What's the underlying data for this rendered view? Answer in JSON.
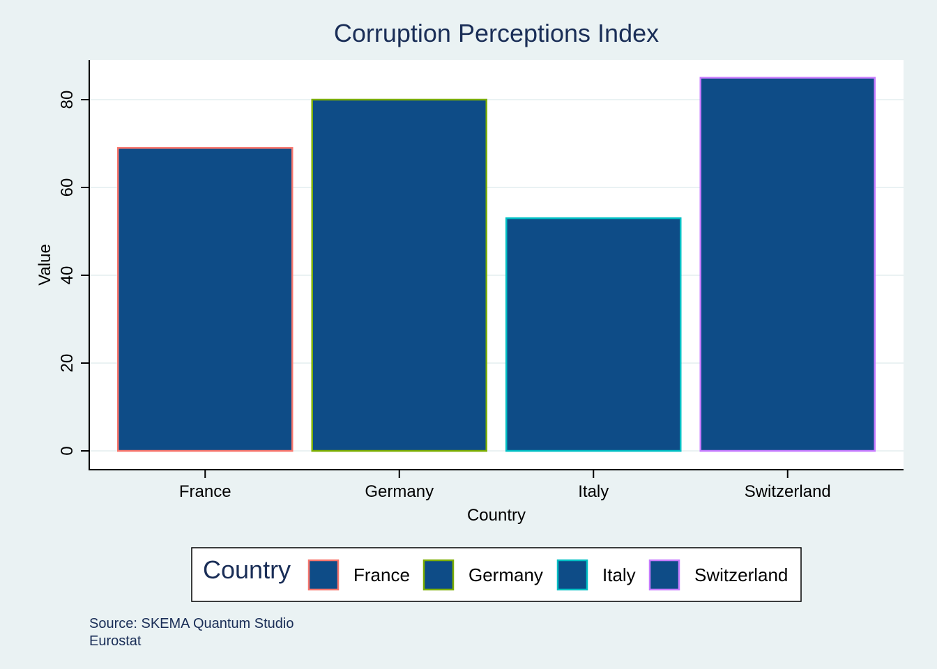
{
  "chart_data": {
    "type": "bar",
    "title": "Corruption Perceptions Index",
    "xlabel": "Country",
    "ylabel": "Value",
    "categories": [
      "France",
      "Germany",
      "Italy",
      "Switzerland"
    ],
    "values": [
      69,
      80,
      53,
      85
    ],
    "ylim": [
      0,
      89
    ],
    "yticks": [
      0,
      20,
      40,
      60,
      80
    ],
    "grid": true,
    "bar_fill": "#0e4c87",
    "outline_colors": [
      "#f8766d",
      "#7cae00",
      "#00bfc4",
      "#c77cff"
    ],
    "legend": {
      "title": "Country",
      "position": "bottom",
      "entries": [
        "France",
        "Germany",
        "Italy",
        "Switzerland"
      ]
    },
    "caption": [
      "Source: SKEMA Quantum Studio",
      "Eurostat"
    ]
  },
  "colors": {
    "background": "#eaf2f3",
    "panel": "#ffffff",
    "gridline": "#eaf2f3",
    "title": "#1a2e57"
  }
}
